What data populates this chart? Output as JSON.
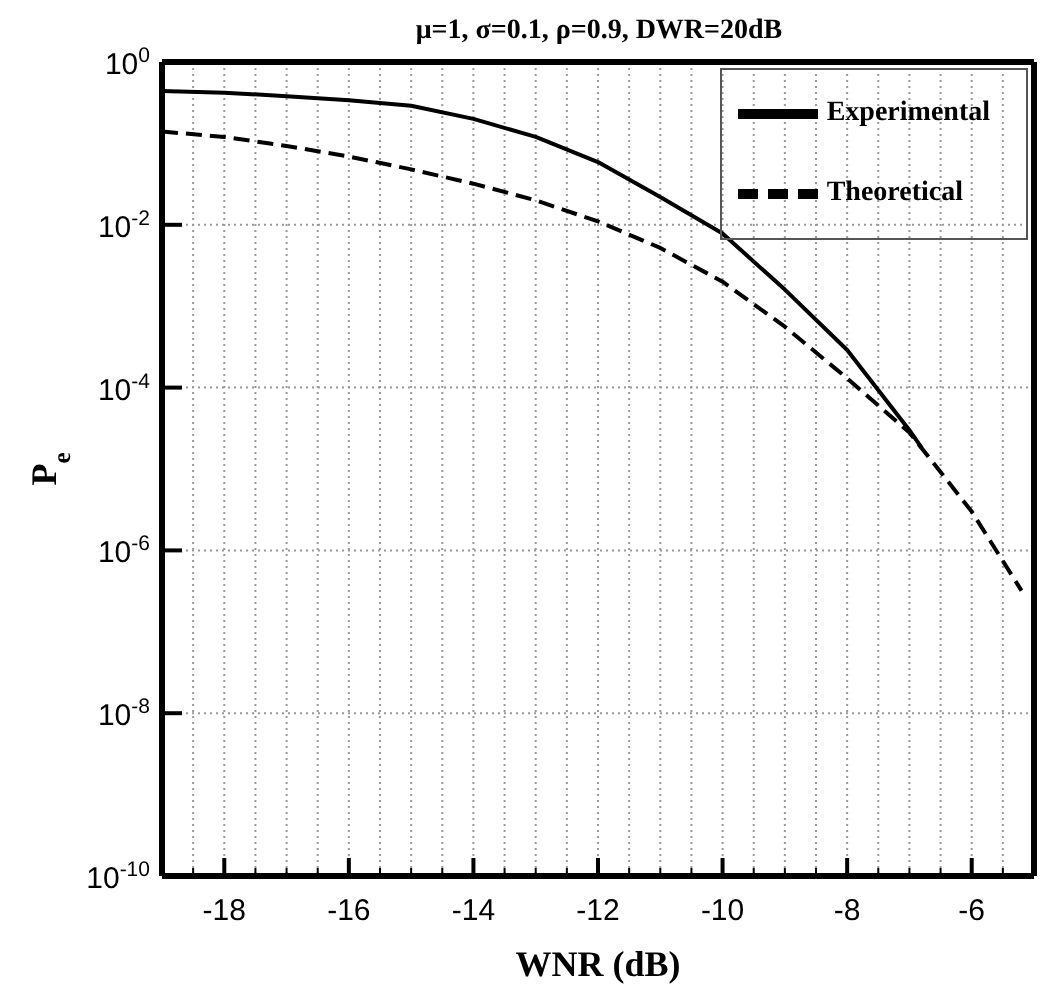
{
  "chart_data": {
    "type": "line",
    "title": "μ=1, σ=0.1, ρ=0.9, DWR=20dB",
    "xlabel": "WNR (dB)",
    "ylabel": "P$_{e}$",
    "series": [
      {
        "name": "Experimental",
        "color": "#000000",
        "line_style": "solid",
        "x": [
          -19,
          -18,
          -17,
          -16,
          -15,
          -14,
          -13,
          -12,
          -11,
          -10,
          -9,
          -8,
          -7,
          -6.8
        ],
        "values": [
          0.44,
          0.42,
          0.38,
          0.34,
          0.29,
          0.2,
          0.12,
          0.059,
          0.022,
          0.0078,
          0.0016,
          0.00029,
          3e-05,
          1.8e-05
        ]
      },
      {
        "name": "Theoretical",
        "color": "#000000",
        "line_style": "dashed",
        "x": [
          -19,
          -18,
          -17,
          -16,
          -15,
          -14,
          -13,
          -12,
          -11,
          -10,
          -9,
          -8,
          -7,
          -6,
          -5.2
        ],
        "values": [
          0.14,
          0.12,
          0.093,
          0.069,
          0.048,
          0.032,
          0.02,
          0.011,
          0.0052,
          0.002,
          0.00056,
          0.00013,
          2.8e-05,
          3e-06,
          3.2e-07
        ]
      }
    ],
    "log": "y",
    "marker": "none",
    "grid": true,
    "legend": "top right",
    "xlim": [
      -19,
      -5
    ],
    "xticks": [
      {
        "value": -18.5,
        "label": null
      },
      -18,
      {
        "value": -17.5,
        "label": null
      },
      {
        "value": -17,
        "label": null
      },
      {
        "value": -16.5,
        "label": null
      },
      -16,
      {
        "value": -15.5,
        "label": null
      },
      {
        "value": -15,
        "label": null
      },
      {
        "value": -14.5,
        "label": null
      },
      -14,
      {
        "value": -13.5,
        "label": null
      },
      {
        "value": -13,
        "label": null
      },
      {
        "value": -12.5,
        "label": null
      },
      -12,
      {
        "value": -11.5,
        "label": null
      },
      {
        "value": -11,
        "label": null
      },
      {
        "value": -10.5,
        "label": null
      },
      -10,
      {
        "value": -9.5,
        "label": null
      },
      {
        "value": -9,
        "label": null
      },
      {
        "value": -8.5,
        "label": null
      },
      -8,
      {
        "value": -7.5,
        "label": null
      },
      {
        "value": -7,
        "label": null
      },
      {
        "value": -6.5,
        "label": null
      },
      -6,
      {
        "value": -5.5,
        "label": null
      }
    ],
    "ylim": [
      1e-10,
      1
    ],
    "yticks": [
      {
        "value": 1e-10,
        "label": "10$^{-10}$"
      },
      {
        "value": 1e-08,
        "label": "10$^{-8}$"
      },
      {
        "value": 1e-06,
        "label": "10$^{-6}$"
      },
      {
        "value": 0.0001,
        "label": "10$^{-4}$"
      },
      {
        "value": 0.01,
        "label": "10$^{-2}$"
      },
      {
        "value": 1,
        "label": "10$^{0}$"
      }
    ]
  }
}
